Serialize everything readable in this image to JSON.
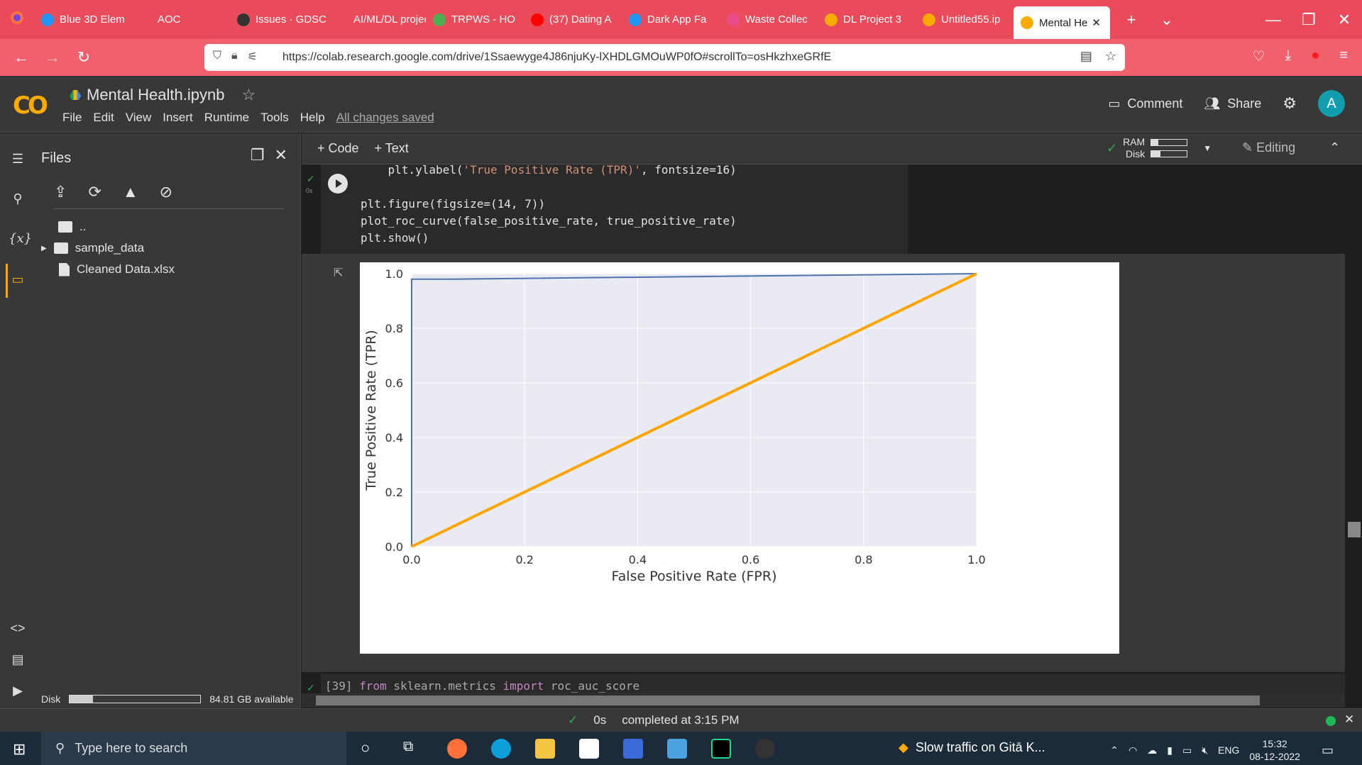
{
  "browser": {
    "tabs": [
      {
        "label": "Blue 3D Elem",
        "icon_color": "#2196f3"
      },
      {
        "label": "AOC",
        "icon_color": "#e94b5b"
      },
      {
        "label": "Issues · GDSC",
        "icon_color": "#333333"
      },
      {
        "label": "AI/ML/DL project",
        "icon_color": "#e94b5b"
      },
      {
        "label": "TRPWS - HO",
        "icon_color": "#4caf50"
      },
      {
        "label": "(37) Dating A",
        "icon_color": "#ff0000"
      },
      {
        "label": "Dark App Fa",
        "icon_color": "#2196f3"
      },
      {
        "label": "Waste Collec",
        "icon_color": "#ea4c89"
      },
      {
        "label": "DL Project 3",
        "icon_color": "#f9ab00"
      },
      {
        "label": "Untitled55.ip",
        "icon_color": "#f9ab00"
      },
      {
        "label": "Mental He",
        "icon_color": "#f9ab00"
      }
    ],
    "url": "https://colab.research.google.com/drive/1Ssaewyge4J86njuKy-lXHDLGMOuWP0fO#scrollTo=osHkzhxeGRfE"
  },
  "colab": {
    "logo": "CO",
    "notebook_name": "Mental Health.ipynb",
    "menu": [
      "File",
      "Edit",
      "View",
      "Insert",
      "Runtime",
      "Tools",
      "Help"
    ],
    "saved_status": "All changes saved",
    "comment": "Comment",
    "share": "Share",
    "avatar_letter": "A",
    "toolbar": {
      "code": "+ Code",
      "text": "+ Text",
      "ram": "RAM",
      "disk": "Disk",
      "editing": "Editing",
      "ram_fill": 0.2,
      "disk_fill": 0.25
    }
  },
  "files": {
    "title": "Files",
    "items": [
      {
        "label": ".."
      },
      {
        "label": "sample_data"
      },
      {
        "label": "Cleaned Data.xlsx"
      }
    ],
    "disk_label": "Disk",
    "disk_available": "84.81 GB available",
    "disk_used_fraction": 0.18
  },
  "cell": {
    "exec_time": "0s",
    "code_line1_pre": "    plt.ylabel(",
    "code_line1_str": "'True Positive Rate (TPR)'",
    "code_line1_post": ", fontsize=16)",
    "code_line2": "plt.figure(figsize=(14, 7))",
    "code_line3": "plot_roc_curve(false_positive_rate, true_positive_rate)",
    "code_line4": "plt.show()"
  },
  "chart_data": {
    "type": "line",
    "xlabel": "False Positive Rate (FPR)",
    "ylabel": "True Positive Rate (TPR)",
    "xlim": [
      0,
      1
    ],
    "ylim": [
      0,
      1
    ],
    "xticks": [
      "0.0",
      "0.2",
      "0.4",
      "0.6",
      "0.8",
      "1.0"
    ],
    "yticks": [
      "0.0",
      "0.2",
      "0.4",
      "0.6",
      "0.8",
      "1.0"
    ],
    "grid": true,
    "series": [
      {
        "color": "#4c72b0",
        "x": [
          0.0,
          0.0,
          0.07,
          1.0
        ],
        "y": [
          0.0,
          0.98,
          0.98,
          1.0
        ]
      },
      {
        "color": "#ffa500",
        "x": [
          0.0,
          1.0
        ],
        "y": [
          0.0,
          1.0
        ]
      }
    ]
  },
  "next_cell": {
    "prompt": "[39]",
    "kw1": "from",
    "mod": " sklearn.metrics ",
    "kw2": "import",
    "rest": " roc_auc_score"
  },
  "status": {
    "time": "0s",
    "message": "completed at 3:15 PM"
  },
  "taskbar": {
    "search_placeholder": "Type here to search",
    "news": "Slow traffic on Gitā K...",
    "lang": "ENG",
    "time": "15:32",
    "date": "08-12-2022"
  }
}
